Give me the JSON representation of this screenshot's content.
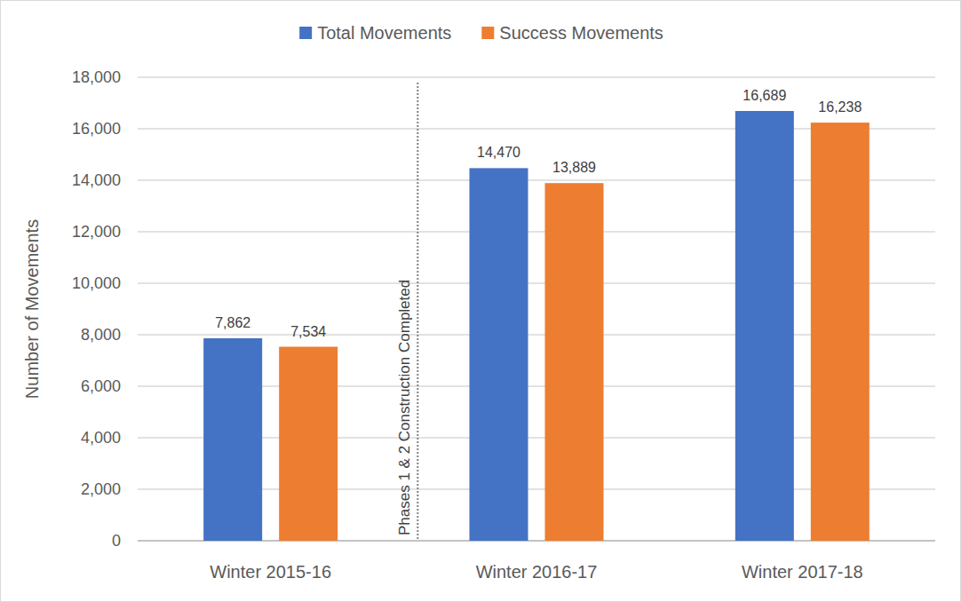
{
  "chart_data": {
    "type": "bar",
    "y_label": "Number of Movements",
    "categories": [
      "Winter 2015-16",
      "Winter 2016-17",
      "Winter 2017-18"
    ],
    "series": [
      {
        "name": "Total Movements",
        "color": "#4472c4",
        "values": [
          7862,
          14470,
          16689
        ],
        "value_labels": [
          "7,862",
          "14,470",
          "16,689"
        ]
      },
      {
        "name": "Success Movements",
        "color": "#ed7d31",
        "values": [
          7534,
          13889,
          16238
        ],
        "value_labels": [
          "7,534",
          "13,889",
          "16,238"
        ]
      }
    ],
    "ylim": [
      0,
      18000
    ],
    "yticks": [
      0,
      {
        "value": 2000,
        "label": "2,000"
      },
      {
        "value": 4000,
        "label": "4,000"
      },
      {
        "value": 6000,
        "label": "6,000"
      },
      {
        "value": 8000,
        "label": "8,000"
      },
      {
        "value": 10000,
        "label": "10,000"
      },
      {
        "value": 12000,
        "label": "12,000"
      },
      {
        "value": 14000,
        "label": "14,000"
      },
      {
        "value": 16000,
        "label": "16,000"
      },
      {
        "value": 18000,
        "label": "18,000"
      }
    ],
    "grid": true,
    "legend": "top",
    "data_labels": true,
    "annotations": [
      {
        "text": "Phases 1 & 2 Construction Completed",
        "between": [
          "Winter 2015-16",
          "Winter 2016-17"
        ]
      }
    ]
  }
}
